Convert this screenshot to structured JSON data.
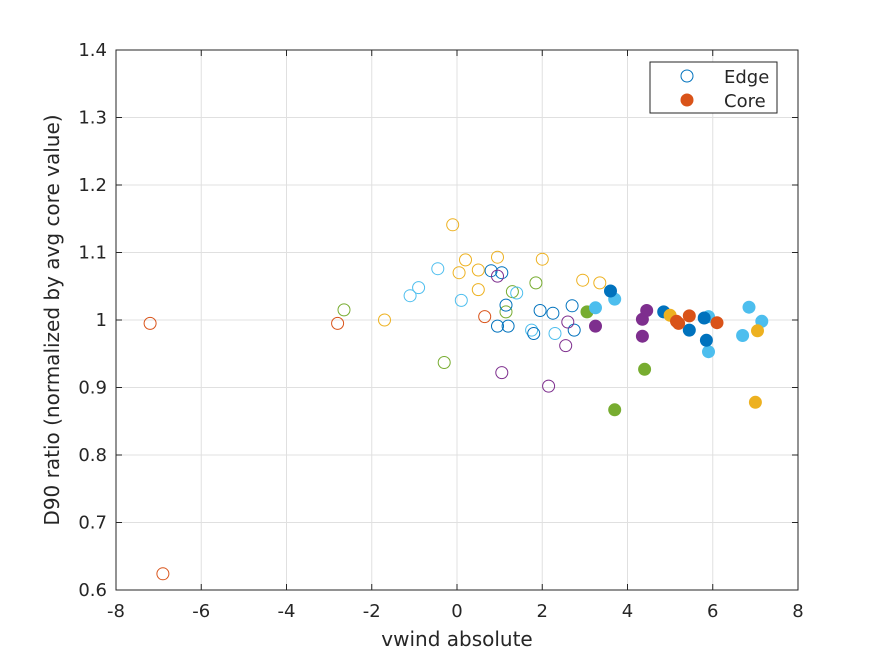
{
  "chart_data": {
    "type": "scatter",
    "title": "",
    "xlabel": "vwind absolute",
    "ylabel": "D90 ratio (normalized by avg core value)",
    "xlim": [
      -8,
      8
    ],
    "ylim": [
      0.6,
      1.4
    ],
    "xticks": [
      -8,
      -6,
      -4,
      -2,
      0,
      2,
      4,
      6,
      8
    ],
    "yticks": [
      0.6,
      0.7,
      0.8,
      0.9,
      1.0,
      1.1,
      1.2,
      1.3,
      1.4
    ],
    "xtick_labels": [
      "-8",
      "-6",
      "-4",
      "-2",
      "0",
      "2",
      "4",
      "6",
      "8"
    ],
    "ytick_labels": [
      "0.6",
      "0.7",
      "0.8",
      "0.9",
      "1",
      "1.1",
      "1.2",
      "1.3",
      "1.4"
    ],
    "grid": true,
    "legend": {
      "position": "top-right",
      "entries": [
        {
          "label": "Edge",
          "marker": "open-circle",
          "color": "#0072bd"
        },
        {
          "label": "Core",
          "marker": "filled-circle",
          "color": "#d95319"
        }
      ]
    },
    "colors": {
      "blue": "#0072bd",
      "orange": "#d95319",
      "yellow": "#edb120",
      "purple": "#7e2f8e",
      "green": "#77ac30",
      "lightblue": "#4dbeee",
      "darkred": "#a2142f"
    },
    "series": [
      {
        "name": "Edge",
        "group": "orange",
        "color": "#d95319",
        "filled": false,
        "points": [
          [
            -7.2,
            0.995
          ],
          [
            -6.9,
            0.624
          ],
          [
            -2.8,
            0.995
          ],
          [
            0.65,
            1.005
          ]
        ]
      },
      {
        "name": "Edge",
        "group": "green",
        "color": "#77ac30",
        "filled": false,
        "points": [
          [
            -2.65,
            1.015
          ],
          [
            -0.3,
            0.937
          ],
          [
            1.15,
            1.012
          ],
          [
            1.3,
            1.042
          ],
          [
            1.85,
            1.055
          ]
        ]
      },
      {
        "name": "Edge",
        "group": "yellow",
        "color": "#edb120",
        "filled": false,
        "points": [
          [
            -1.7,
            1.0
          ],
          [
            -0.1,
            1.141
          ],
          [
            0.05,
            1.07
          ],
          [
            0.2,
            1.089
          ],
          [
            0.5,
            1.045
          ],
          [
            0.5,
            1.074
          ],
          [
            0.95,
            1.093
          ],
          [
            2.0,
            1.09
          ],
          [
            2.95,
            1.059
          ],
          [
            3.35,
            1.055
          ]
        ]
      },
      {
        "name": "Edge",
        "group": "lightblue",
        "color": "#4dbeee",
        "filled": false,
        "points": [
          [
            -1.1,
            1.036
          ],
          [
            -0.9,
            1.048
          ],
          [
            -0.45,
            1.076
          ],
          [
            0.1,
            1.029
          ],
          [
            1.4,
            1.04
          ],
          [
            1.75,
            0.985
          ],
          [
            2.3,
            0.98
          ]
        ]
      },
      {
        "name": "Edge",
        "group": "blue",
        "color": "#0072bd",
        "filled": false,
        "points": [
          [
            0.8,
            1.073
          ],
          [
            0.95,
            0.991
          ],
          [
            1.05,
            1.07
          ],
          [
            1.15,
            1.022
          ],
          [
            1.2,
            0.991
          ],
          [
            1.8,
            0.98
          ],
          [
            1.95,
            1.014
          ],
          [
            2.25,
            1.01
          ],
          [
            2.7,
            1.021
          ],
          [
            2.75,
            0.985
          ]
        ]
      },
      {
        "name": "Edge",
        "group": "purple",
        "color": "#7e2f8e",
        "filled": false,
        "points": [
          [
            0.95,
            1.065
          ],
          [
            1.05,
            0.922
          ],
          [
            2.15,
            0.902
          ],
          [
            2.55,
            0.962
          ],
          [
            2.6,
            0.997
          ]
        ]
      },
      {
        "name": "Core",
        "group": "green",
        "color": "#77ac30",
        "filled": true,
        "points": [
          [
            3.05,
            1.012
          ],
          [
            3.7,
            0.867
          ],
          [
            4.4,
            0.927
          ]
        ]
      },
      {
        "name": "Core",
        "group": "lightblue",
        "color": "#4dbeee",
        "filled": true,
        "points": [
          [
            3.25,
            1.018
          ],
          [
            3.7,
            1.031
          ],
          [
            5.9,
            0.953
          ],
          [
            5.9,
            1.005
          ],
          [
            6.7,
            0.977
          ],
          [
            6.85,
            1.019
          ],
          [
            7.15,
            0.998
          ]
        ]
      },
      {
        "name": "Core",
        "group": "purple",
        "color": "#7e2f8e",
        "filled": true,
        "points": [
          [
            3.25,
            0.991
          ],
          [
            4.35,
            1.001
          ],
          [
            4.35,
            0.976
          ],
          [
            4.45,
            1.014
          ]
        ]
      },
      {
        "name": "Core",
        "group": "blue",
        "color": "#0072bd",
        "filled": true,
        "points": [
          [
            3.6,
            1.043
          ],
          [
            4.85,
            1.012
          ],
          [
            5.45,
            0.985
          ],
          [
            5.8,
            1.003
          ],
          [
            5.85,
            0.97
          ]
        ]
      },
      {
        "name": "Core",
        "group": "yellow",
        "color": "#edb120",
        "filled": true,
        "points": [
          [
            5.0,
            1.007
          ],
          [
            7.0,
            0.878
          ],
          [
            7.05,
            0.984
          ]
        ]
      },
      {
        "name": "Core",
        "group": "orange",
        "color": "#d95319",
        "filled": true,
        "points": [
          [
            5.15,
            0.998
          ],
          [
            5.2,
            0.995
          ],
          [
            5.45,
            1.006
          ],
          [
            6.1,
            0.996
          ]
        ]
      }
    ]
  }
}
